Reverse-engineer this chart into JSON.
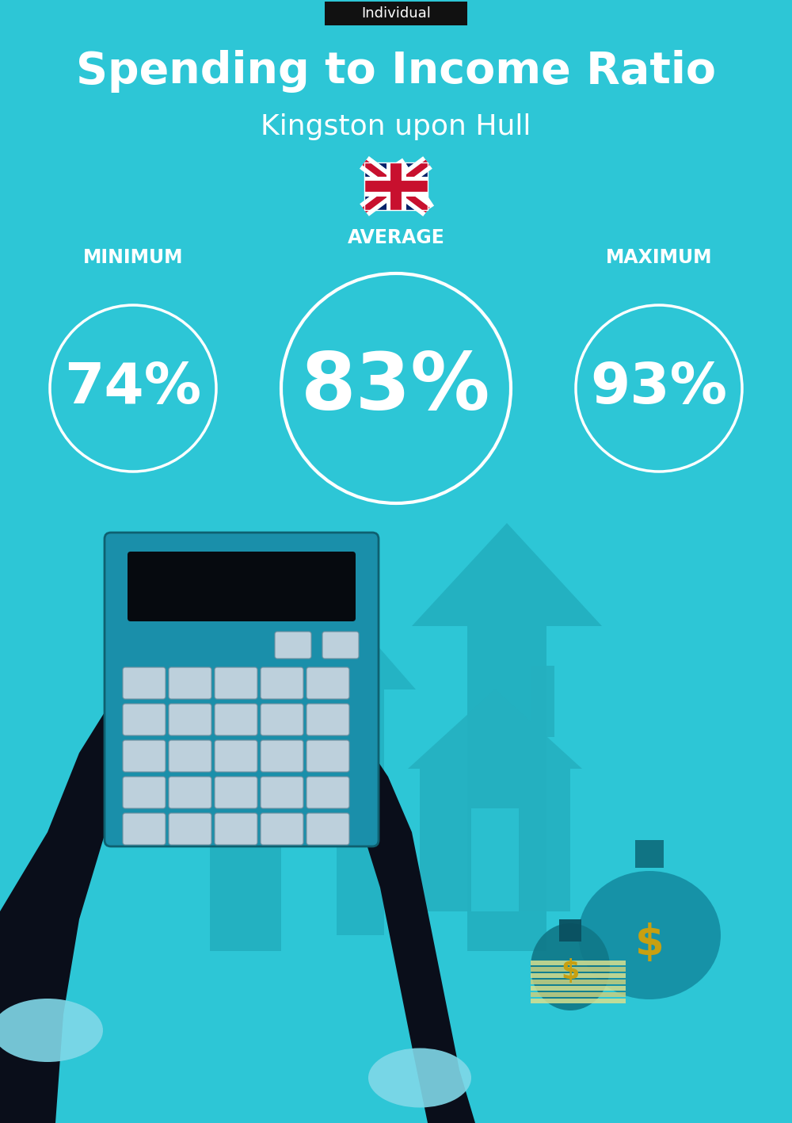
{
  "bg_color": "#2DC6D6",
  "title": "Spending to Income Ratio",
  "subtitle": "Kingston upon Hull",
  "tag_text": "Individual",
  "tag_bg": "#111111",
  "tag_text_color": "#ffffff",
  "min_label": "MINIMUM",
  "avg_label": "AVERAGE",
  "max_label": "MAXIMUM",
  "min_value": "74%",
  "avg_value": "83%",
  "max_value": "93%",
  "text_color": "white",
  "title_fontsize": 40,
  "subtitle_fontsize": 26,
  "min_max_val_fontsize": 52,
  "avg_val_fontsize": 72,
  "label_fontsize": 17,
  "tag_fontsize": 13,
  "fig_width": 10.0,
  "fig_height": 14.17,
  "dpi": 100,
  "darker_teal": "#1AACBA",
  "dark_teal": "#178898",
  "light_teal": "#3DD0E0",
  "hand_color": "#0a0e1a",
  "cuff_color": "#80D8E8",
  "calc_body": "#1A8FAA",
  "calc_screen": "#060a0f",
  "calc_btn": "#BDD0DC",
  "money_bag_color": "#15A0B0",
  "money_bag2_color": "#108090",
  "dollar_color": "#C8A010",
  "house_color": "#25B0C0",
  "arrow_color": "#20AABB"
}
